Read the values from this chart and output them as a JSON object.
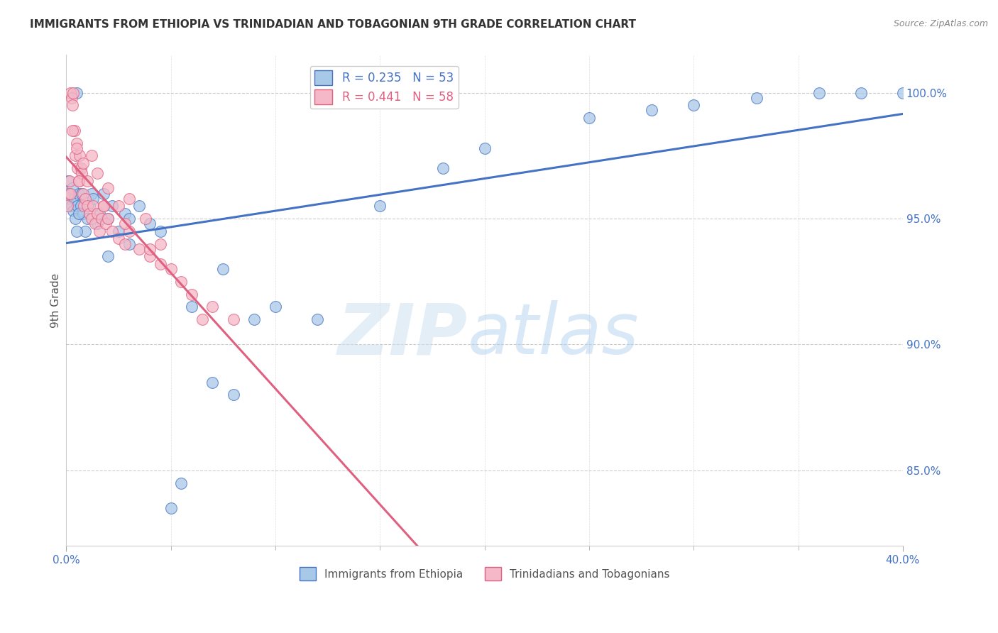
{
  "title": "IMMIGRANTS FROM ETHIOPIA VS TRINIDADIAN AND TOBAGONIAN 9TH GRADE CORRELATION CHART",
  "source": "Source: ZipAtlas.com",
  "ylabel": "9th Grade",
  "blue_R": 0.235,
  "blue_N": 53,
  "pink_R": 0.441,
  "pink_N": 58,
  "blue_label": "Immigrants from Ethiopia",
  "pink_label": "Trinidadians and Tobagonians",
  "blue_color": "#a8c8e8",
  "pink_color": "#f4b8c8",
  "blue_line_color": "#4472c4",
  "pink_line_color": "#e06080",
  "background_color": "#ffffff",
  "blue_x": [
    0.1,
    0.15,
    0.2,
    0.25,
    0.3,
    0.35,
    0.4,
    0.45,
    0.5,
    0.55,
    0.6,
    0.7,
    0.75,
    0.8,
    0.9,
    1.0,
    1.1,
    1.2,
    1.3,
    1.5,
    1.6,
    1.8,
    2.0,
    2.2,
    2.5,
    2.8,
    3.0,
    3.5,
    4.0,
    4.5,
    5.0,
    6.0,
    7.0,
    8.0,
    9.0,
    10.0,
    12.0,
    15.0,
    18.0,
    20.0,
    25.0,
    28.0,
    30.0,
    33.0,
    36.0,
    38.0,
    40.0,
    0.5,
    0.6,
    2.0,
    3.0,
    5.5,
    7.5
  ],
  "blue_y": [
    96.5,
    95.8,
    96.0,
    95.5,
    96.2,
    95.3,
    95.8,
    95.0,
    100.0,
    95.5,
    96.0,
    95.5,
    96.0,
    95.2,
    94.5,
    95.0,
    95.5,
    96.0,
    95.8,
    94.8,
    95.2,
    96.0,
    95.0,
    95.5,
    94.5,
    95.2,
    95.0,
    95.5,
    94.8,
    94.5,
    83.5,
    91.5,
    88.5,
    88.0,
    91.0,
    91.5,
    91.0,
    95.5,
    97.0,
    97.8,
    99.0,
    99.3,
    99.5,
    99.8,
    100.0,
    100.0,
    100.0,
    94.5,
    95.2,
    93.5,
    94.0,
    84.5,
    93.0
  ],
  "pink_x": [
    0.05,
    0.1,
    0.15,
    0.2,
    0.25,
    0.3,
    0.35,
    0.4,
    0.45,
    0.5,
    0.55,
    0.6,
    0.65,
    0.7,
    0.75,
    0.8,
    0.85,
    0.9,
    1.0,
    1.1,
    1.2,
    1.3,
    1.4,
    1.5,
    1.6,
    1.7,
    1.8,
    1.9,
    2.0,
    2.2,
    2.5,
    2.8,
    3.0,
    3.5,
    4.0,
    4.5,
    5.0,
    6.0,
    7.0,
    8.0,
    0.3,
    0.5,
    0.8,
    1.2,
    1.5,
    2.0,
    2.5,
    3.0,
    3.8,
    4.5,
    5.5,
    6.5,
    0.2,
    0.6,
    1.0,
    1.8,
    2.8,
    4.0
  ],
  "pink_y": [
    95.5,
    96.0,
    96.5,
    100.0,
    99.8,
    99.5,
    100.0,
    98.5,
    97.5,
    98.0,
    97.0,
    96.5,
    97.5,
    97.0,
    96.8,
    96.0,
    95.5,
    95.8,
    95.5,
    95.2,
    95.0,
    95.5,
    94.8,
    95.2,
    94.5,
    95.0,
    95.5,
    94.8,
    95.0,
    94.5,
    94.2,
    94.0,
    94.5,
    93.8,
    93.5,
    93.2,
    93.0,
    92.0,
    91.5,
    91.0,
    98.5,
    97.8,
    97.2,
    97.5,
    96.8,
    96.2,
    95.5,
    95.8,
    95.0,
    94.0,
    92.5,
    91.0,
    96.0,
    96.5,
    96.5,
    95.5,
    94.8,
    93.8
  ],
  "xlim": [
    0.0,
    40.0
  ],
  "ylim": [
    82.0,
    101.5
  ],
  "yticks": [
    85.0,
    90.0,
    95.0,
    100.0
  ],
  "ytick_labels": [
    "85.0%",
    "90.0%",
    "95.0%",
    "100.0%"
  ],
  "xtick_minor": [
    5,
    10,
    15,
    20,
    25,
    30,
    35
  ]
}
